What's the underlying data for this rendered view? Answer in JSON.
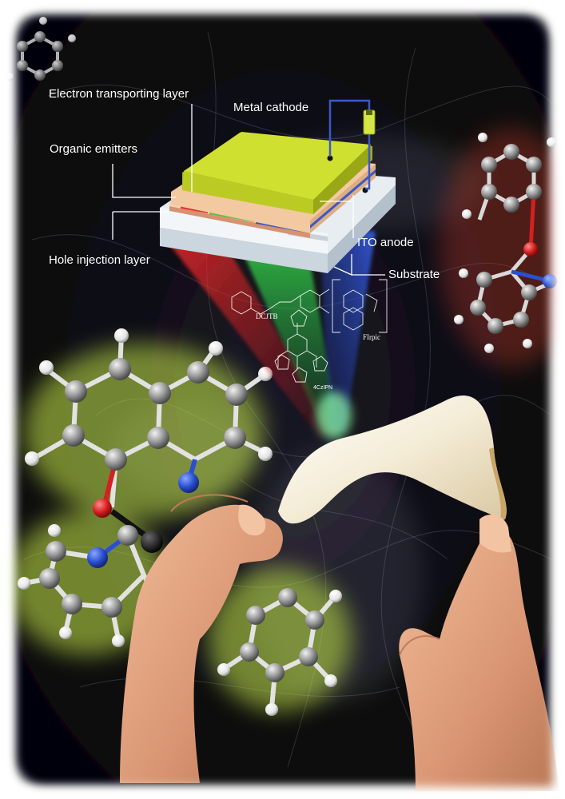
{
  "labels": {
    "electron_transporting_layer": "Electron transporting layer",
    "metal_cathode": "Metal cathode",
    "organic_emitters": "Organic emitters",
    "hole_injection_layer": "Hole injection layer",
    "ito_anode": "ITO anode",
    "substrate": "Substrate"
  },
  "molecules": {
    "red": "DCJTB",
    "green": "4CzIPN",
    "blue": "FIrpic"
  },
  "colors": {
    "background": "#0c0b10",
    "cathode_top": "#cfe031",
    "cathode_edge": "#a9b81c",
    "etl": "#f2c9a0",
    "emitter_red": "#e23a3a",
    "emitter_green": "#5cbf3c",
    "emitter_blue": "#3d58c6",
    "hil": "#e9ab8e",
    "substrate": "#e7edf1",
    "glow": "#c6e84a",
    "carbon_atom": "#9a9a9a",
    "hydrogen_atom": "#f2f2f2",
    "nitrogen_atom": "#2a4fd0",
    "oxygen_atom": "#d42020",
    "skin": "#e3a27c"
  }
}
